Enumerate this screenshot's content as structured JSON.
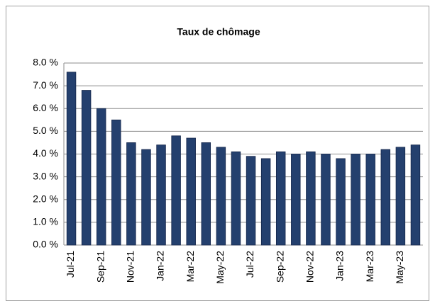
{
  "chart_data": {
    "type": "bar",
    "title": "Taux de chômage",
    "categories": [
      "Jul-21",
      null,
      "Sep-21",
      null,
      "Nov-21",
      null,
      "Jan-22",
      null,
      "Mar-22",
      null,
      "May-22",
      null,
      "Jul-22",
      null,
      "Sep-22",
      null,
      "Nov-22",
      null,
      "Jan-23",
      null,
      "Mar-23",
      null,
      "May-23",
      null
    ],
    "values": [
      7.6,
      6.8,
      6.0,
      5.5,
      4.5,
      4.2,
      4.4,
      4.8,
      4.7,
      4.5,
      4.3,
      4.1,
      3.9,
      3.8,
      4.1,
      4.0,
      4.1,
      4.0,
      3.8,
      4.0,
      4.0,
      4.2,
      4.3,
      4.4
    ],
    "color": "#24406e",
    "ylim": [
      0,
      8
    ],
    "yticks": [
      {
        "value": 0,
        "label": "0.0 %"
      },
      {
        "value": 1,
        "label": "1.0 %"
      },
      {
        "value": 2,
        "label": "2.0 %"
      },
      {
        "value": 3,
        "label": "3.0 %"
      },
      {
        "value": 4,
        "label": "4.0 %"
      },
      {
        "value": 5,
        "label": "5.0 %"
      },
      {
        "value": 6,
        "label": "6.0 %"
      },
      {
        "value": 7,
        "label": "7.0 %"
      },
      {
        "value": 8,
        "label": "8.0 %"
      }
    ],
    "grid": true
  }
}
